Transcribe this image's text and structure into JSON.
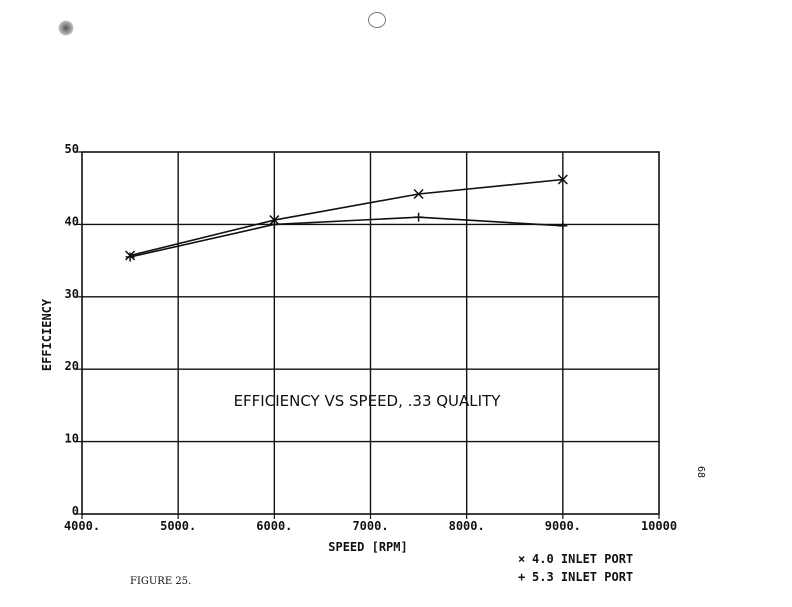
{
  "chart_data": {
    "type": "line",
    "title": "EFFICIENCY VS SPEED, .33 QUALITY",
    "xlabel": "SPEED [RPM]",
    "ylabel": "EFFICIENCY",
    "xlim": [
      4000,
      10000
    ],
    "ylim": [
      0,
      50
    ],
    "x_ticks": [
      "4000.",
      "5000.",
      "6000.",
      "7000.",
      "8000.",
      "9000.",
      "10000"
    ],
    "y_ticks": [
      "0",
      "10",
      "20",
      "30",
      "40",
      "50"
    ],
    "grid": true,
    "legend_position": "bottom-right",
    "series": [
      {
        "name": "4.0 INLET PORT",
        "marker": "x",
        "x": [
          4500,
          6000,
          7500,
          9000
        ],
        "y": [
          35.7,
          40.6,
          44.2,
          46.2
        ]
      },
      {
        "name": "5.3 INLET PORT",
        "marker": "+",
        "x": [
          4500,
          6000,
          7500,
          9000
        ],
        "y": [
          35.5,
          40.0,
          41.0,
          39.8
        ]
      }
    ],
    "legend": [
      {
        "symbol": "×",
        "label": "4.0 INLET PORT"
      },
      {
        "symbol": "+",
        "label": "5.3 INLET PORT"
      }
    ]
  },
  "figure_caption": "FIGURE 25.",
  "page_number": "68"
}
